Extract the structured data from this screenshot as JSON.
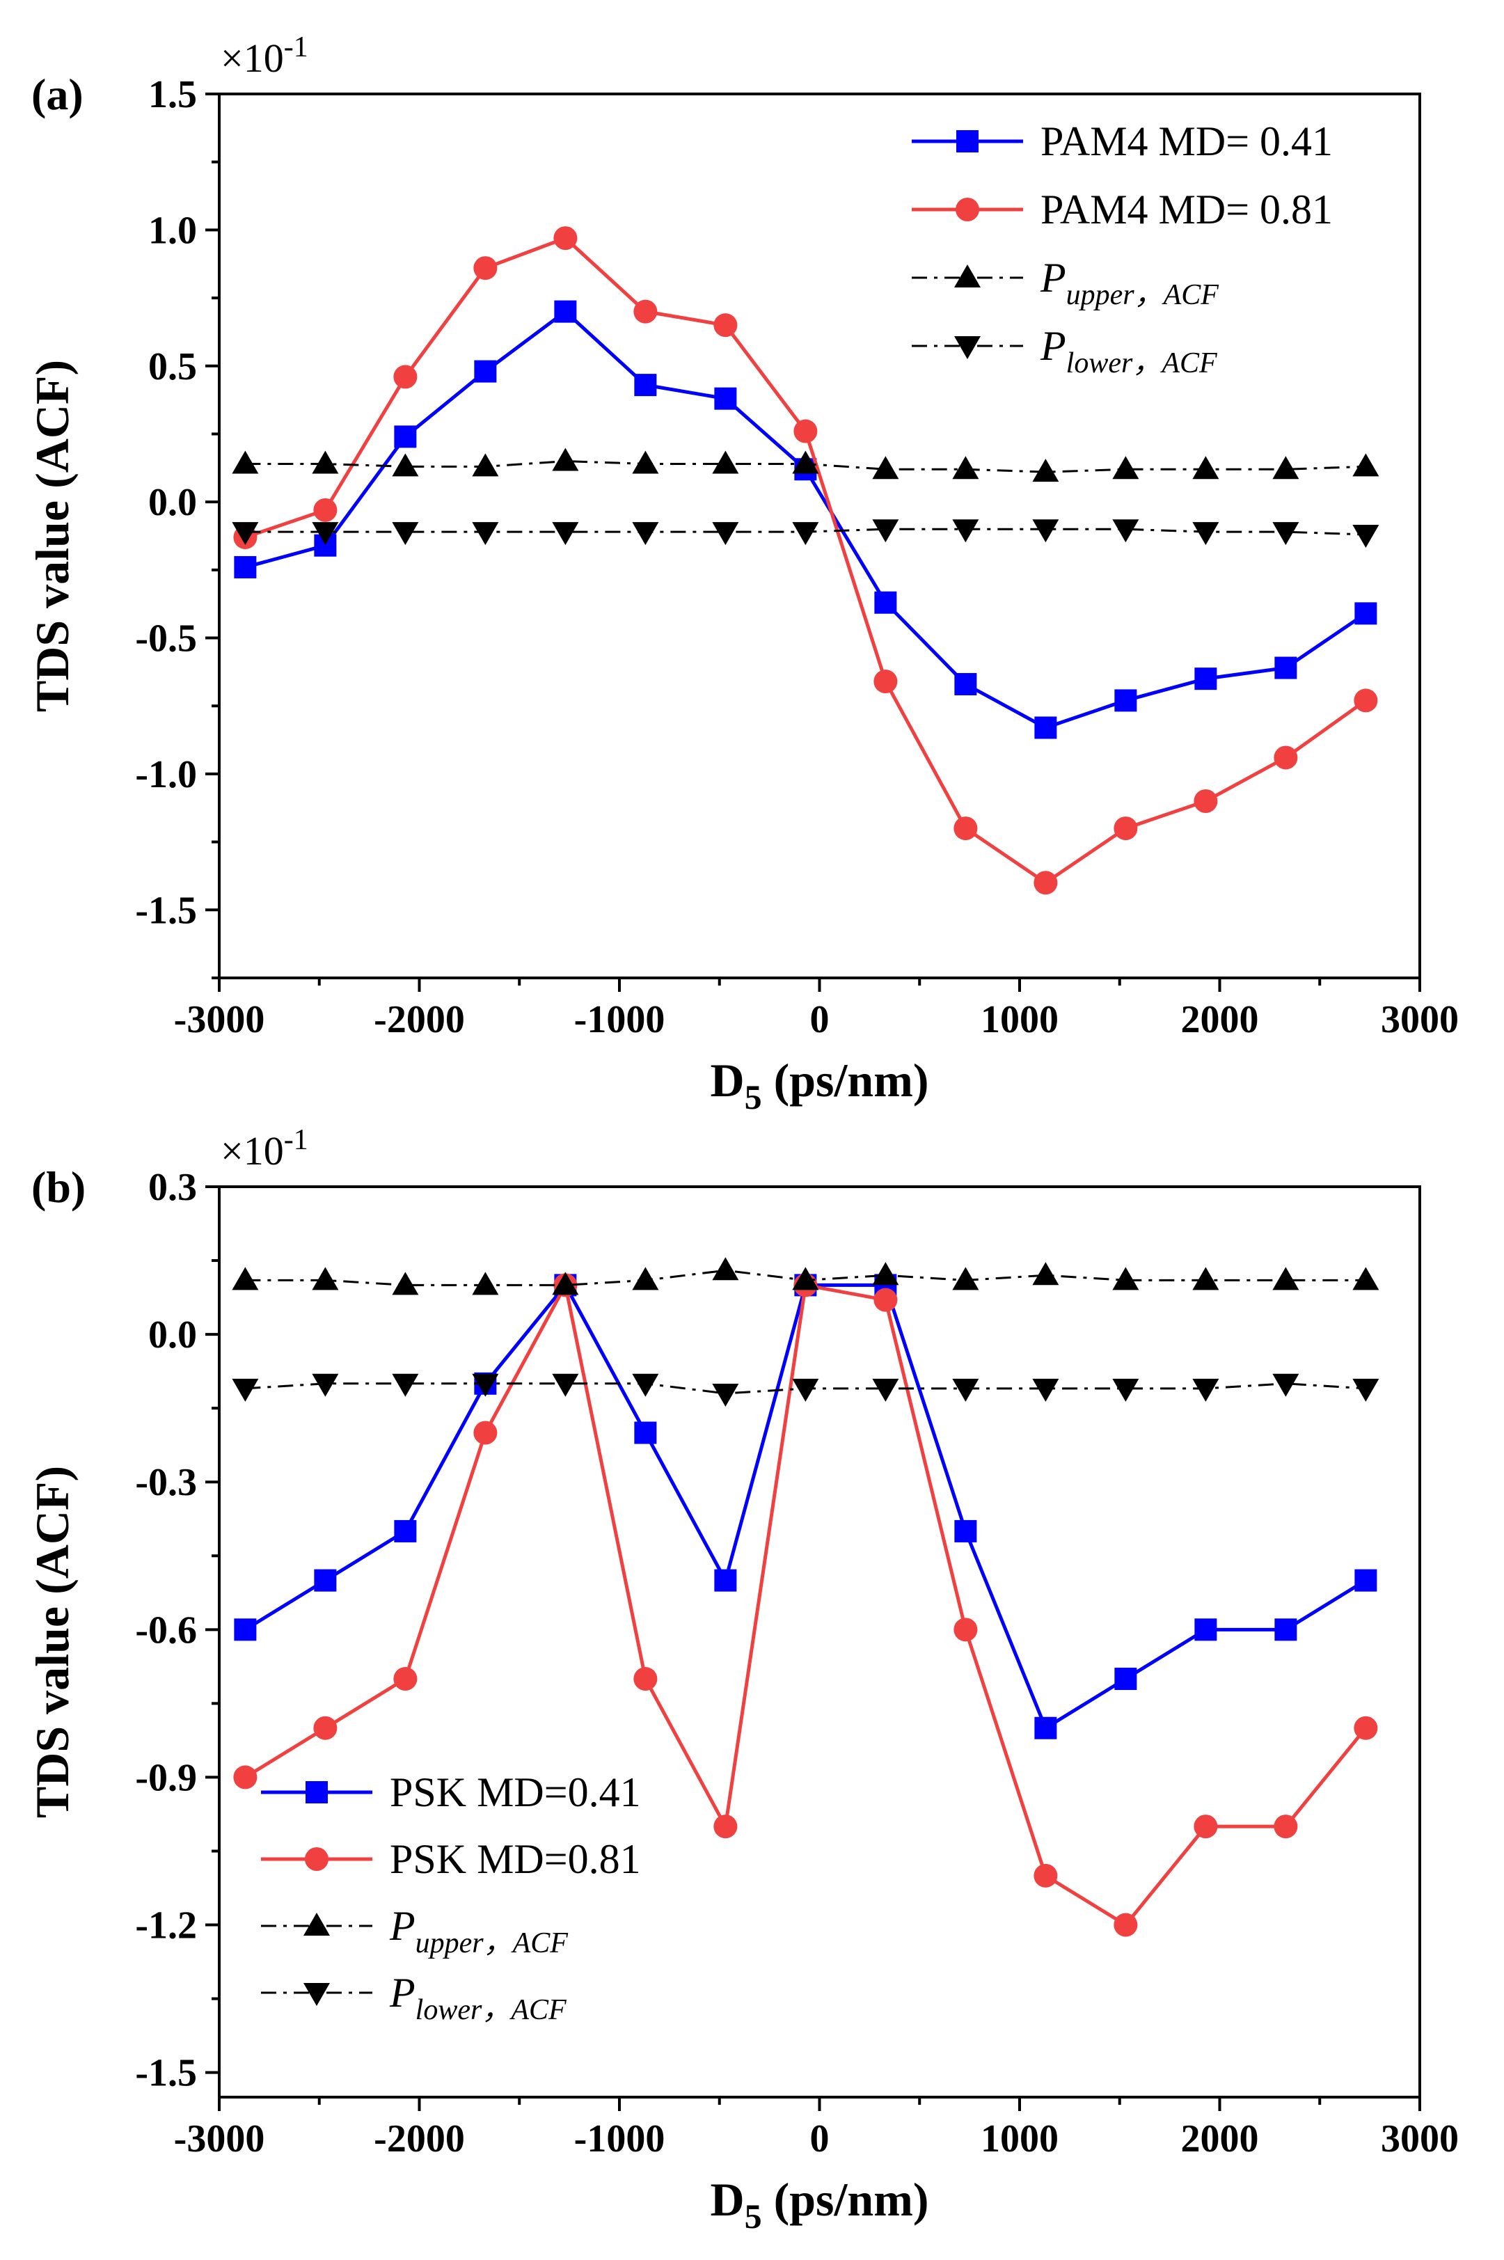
{
  "chart_data": [
    {
      "type": "line",
      "panel_label": "(a)",
      "ylabel": "TDS value (ACF)",
      "xlabel_main": "D",
      "xlabel_sub": "5",
      "xlabel_rest": " (ps/nm)",
      "exponent_label": "×10",
      "exponent_power": "-1",
      "xlim": [
        -3000,
        3000
      ],
      "ylim": [
        -1.75,
        1.5
      ],
      "xticks": [
        -3000,
        -2000,
        -1000,
        0,
        1000,
        2000,
        3000
      ],
      "xtick_labels": [
        "-3000",
        "-2000",
        "-1000",
        "0",
        "1000",
        "2000",
        "3000"
      ],
      "yticks": [
        -1.5,
        -1.0,
        -0.5,
        0.0,
        0.5,
        1.0,
        1.5
      ],
      "ytick_labels": [
        "-1.5",
        "-1.0",
        "-0.5",
        "0.0",
        "0.5",
        "1.0",
        "1.5"
      ],
      "legend_position": "top-right",
      "x": [
        -2870,
        -2470,
        -2070,
        -1670,
        -1270,
        -870,
        -470,
        -70,
        330,
        730,
        1130,
        1530,
        1930,
        2330,
        2730
      ],
      "series": [
        {
          "name": "PAM4 MD= 0.41",
          "color": "#0000ff",
          "marker": "square",
          "style": "solid",
          "values": [
            -0.24,
            -0.16,
            0.24,
            0.48,
            0.7,
            0.43,
            0.38,
            0.12,
            -0.37,
            -0.67,
            -0.83,
            -0.73,
            -0.65,
            -0.61,
            -0.41
          ]
        },
        {
          "name": "PAM4 MD= 0.81",
          "color": "#f04040",
          "marker": "circle",
          "style": "solid",
          "values": [
            -0.13,
            -0.03,
            0.46,
            0.86,
            0.97,
            0.7,
            0.65,
            0.26,
            -0.66,
            -1.2,
            -1.4,
            -1.2,
            -1.1,
            -0.94,
            -0.73
          ]
        },
        {
          "name_main": "P",
          "name_sub": "upper，ACF",
          "color": "#000000",
          "marker": "triangle-up",
          "style": "dashdot",
          "values": [
            0.14,
            0.14,
            0.13,
            0.13,
            0.15,
            0.14,
            0.14,
            0.14,
            0.12,
            0.12,
            0.11,
            0.12,
            0.12,
            0.12,
            0.13
          ]
        },
        {
          "name_main": "P",
          "name_sub": "lower，ACF",
          "color": "#000000",
          "marker": "triangle-down",
          "style": "dashdot",
          "values": [
            -0.11,
            -0.11,
            -0.11,
            -0.11,
            -0.11,
            -0.11,
            -0.11,
            -0.11,
            -0.1,
            -0.1,
            -0.1,
            -0.1,
            -0.11,
            -0.11,
            -0.12
          ]
        }
      ]
    },
    {
      "type": "line",
      "panel_label": "(b)",
      "ylabel": "TDS value (ACF)",
      "xlabel_main": "D",
      "xlabel_sub": "5",
      "xlabel_rest": " (ps/nm)",
      "exponent_label": "×10",
      "exponent_power": "-1",
      "xlim": [
        -3000,
        3000
      ],
      "ylim": [
        -1.55,
        0.3
      ],
      "xticks": [
        -3000,
        -2000,
        -1000,
        0,
        1000,
        2000,
        3000
      ],
      "xtick_labels": [
        "-3000",
        "-2000",
        "-1000",
        "0",
        "1000",
        "2000",
        "3000"
      ],
      "yticks": [
        -1.5,
        -1.2,
        -0.9,
        -0.6,
        -0.3,
        0.0,
        0.3
      ],
      "ytick_labels": [
        "-1.5",
        "-1.2",
        "-0.9",
        "-0.6",
        "-0.3",
        "0.0",
        "0.3"
      ],
      "legend_position": "bottom-left",
      "x": [
        -2870,
        -2470,
        -2070,
        -1670,
        -1270,
        -870,
        -470,
        -70,
        330,
        730,
        1130,
        1530,
        1930,
        2330,
        2730
      ],
      "series": [
        {
          "name": "PSK MD=0.41",
          "color": "#0000ff",
          "marker": "square",
          "style": "solid",
          "values": [
            -0.6,
            -0.5,
            -0.4,
            -0.1,
            0.1,
            -0.2,
            -0.5,
            0.1,
            0.1,
            -0.4,
            -0.8,
            -0.7,
            -0.6,
            -0.6,
            -0.5
          ]
        },
        {
          "name": "PSK MD=0.81",
          "color": "#f04040",
          "marker": "circle",
          "style": "solid",
          "values": [
            -0.9,
            -0.8,
            -0.7,
            -0.2,
            0.1,
            -0.7,
            -1.0,
            0.1,
            0.07,
            -0.6,
            -1.1,
            -1.2,
            -1.0,
            -1.0,
            -0.8
          ]
        },
        {
          "name_main": "P",
          "name_sub": "upper，ACF",
          "color": "#000000",
          "marker": "triangle-up",
          "style": "dashdot",
          "values": [
            0.11,
            0.11,
            0.1,
            0.1,
            0.1,
            0.11,
            0.13,
            0.11,
            0.12,
            0.11,
            0.12,
            0.11,
            0.11,
            0.11,
            0.11
          ]
        },
        {
          "name_main": "P",
          "name_sub": "lower，ACF",
          "color": "#000000",
          "marker": "triangle-down",
          "style": "dashdot",
          "values": [
            -0.11,
            -0.1,
            -0.1,
            -0.1,
            -0.1,
            -0.1,
            -0.12,
            -0.11,
            -0.11,
            -0.11,
            -0.11,
            -0.11,
            -0.11,
            -0.1,
            -0.11
          ]
        }
      ]
    }
  ]
}
